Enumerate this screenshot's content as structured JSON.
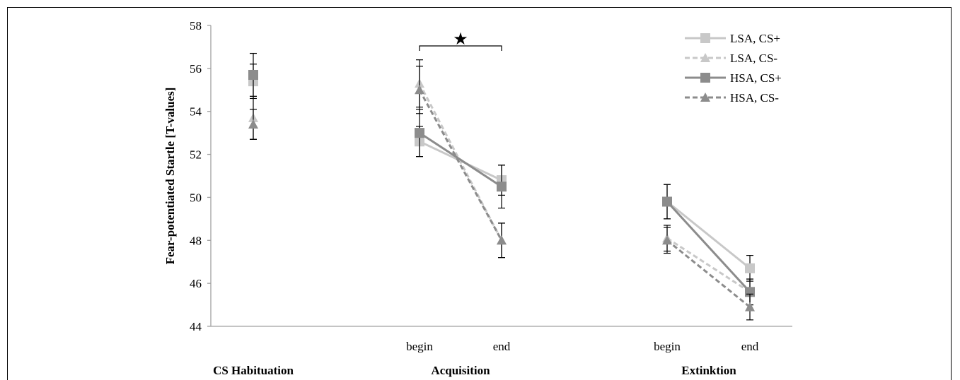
{
  "chart_data": {
    "type": "line",
    "ylabel": "Fear-potentiated Startle [T-values]",
    "ylim": [
      44,
      58
    ],
    "yticks": [
      44,
      46,
      48,
      50,
      52,
      54,
      56,
      58
    ],
    "grid": false,
    "legend_position": "top-right",
    "x_positions": [
      "hab",
      "acq_begin",
      "acq_end",
      "ext_begin",
      "ext_end"
    ],
    "x_tick_labels": [
      {
        "x": "acq_begin",
        "label": "begin"
      },
      {
        "x": "acq_end",
        "label": "end"
      },
      {
        "x": "ext_begin",
        "label": "begin"
      },
      {
        "x": "ext_end",
        "label": "end"
      }
    ],
    "group_labels": [
      {
        "label": "CS Habituation",
        "x": "hab"
      },
      {
        "label": "Acquisition",
        "x": "acq"
      },
      {
        "label": "Extinktion",
        "x": "ext"
      }
    ],
    "significance": {
      "from": "acq_begin",
      "to": "acq_end",
      "symbol": "★"
    },
    "colors": {
      "light": "#c8c8c8",
      "dark": "#8c8c8c"
    },
    "series": [
      {
        "name": "LSA, CS+",
        "color": "#c8c8c8",
        "dash": false,
        "marker": "square",
        "values": [
          55.4,
          52.6,
          50.8,
          49.8,
          46.7
        ],
        "errors": [
          0.8,
          0.7,
          0.7,
          0.8,
          0.6
        ]
      },
      {
        "name": "LSA, CS-",
        "color": "#c8c8c8",
        "dash": true,
        "marker": "triangle",
        "values": [
          53.7,
          55.3,
          48.0,
          48.1,
          45.6
        ],
        "errors": [
          1.0,
          1.1,
          0.8,
          0.6,
          0.6
        ]
      },
      {
        "name": "HSA, CS+",
        "color": "#8c8c8c",
        "dash": false,
        "marker": "square",
        "values": [
          55.7,
          53.0,
          50.5,
          49.8,
          45.6
        ],
        "errors": [
          1.0,
          1.1,
          1.0,
          0.8,
          0.6
        ]
      },
      {
        "name": "HSA, CS-",
        "color": "#8c8c8c",
        "dash": true,
        "marker": "triangle",
        "values": [
          53.4,
          55.0,
          48.0,
          48.0,
          44.9
        ],
        "errors": [
          0.7,
          1.1,
          0.8,
          0.6,
          0.6
        ]
      }
    ],
    "segments": [
      [
        "acq_begin",
        "acq_end"
      ],
      [
        "ext_begin",
        "ext_end"
      ]
    ]
  }
}
